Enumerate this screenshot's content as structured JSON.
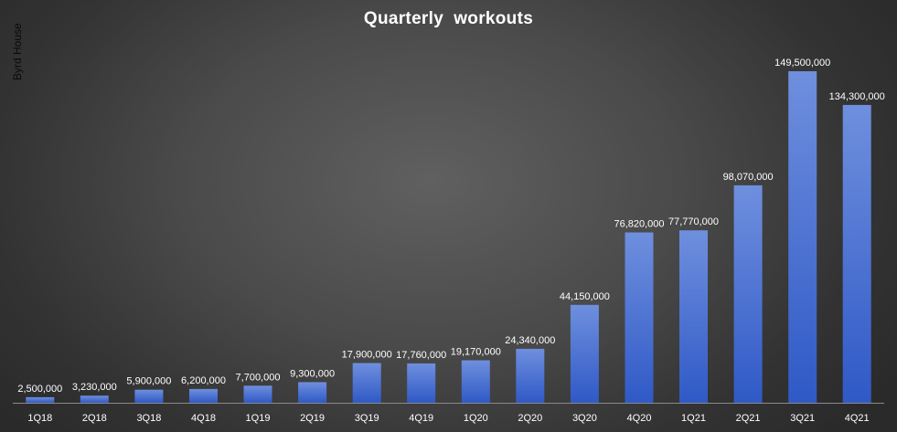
{
  "chart_data": {
    "type": "bar",
    "title": "Quarterly  workouts",
    "watermark": "Byrd House",
    "categories": [
      "1Q18",
      "2Q18",
      "3Q18",
      "4Q18",
      "1Q19",
      "2Q19",
      "3Q19",
      "4Q19",
      "1Q20",
      "2Q20",
      "3Q20",
      "4Q20",
      "1Q21",
      "2Q21",
      "3Q21",
      "4Q21"
    ],
    "values": [
      2500000,
      3230000,
      5900000,
      6200000,
      7700000,
      9300000,
      17900000,
      17760000,
      19170000,
      24340000,
      44150000,
      76820000,
      77770000,
      98070000,
      149500000,
      134300000
    ],
    "data_labels": [
      "2,500,000",
      "3,230,000",
      "5,900,000",
      "6,200,000",
      "7,700,000",
      "9,300,000",
      "17,900,000",
      "17,760,000",
      "19,170,000",
      "24,340,000",
      "44,150,000",
      "76,820,000",
      "77,770,000",
      "98,070,000",
      "149,500,000",
      "134,300,000"
    ],
    "xlabel": "",
    "ylabel": "",
    "ylim": [
      0,
      160000000
    ],
    "grid": false,
    "legend": "none",
    "bar_color_top": "#6f8fde",
    "bar_color_bottom": "#2f59c6",
    "background_color": "#4a4a4a"
  }
}
